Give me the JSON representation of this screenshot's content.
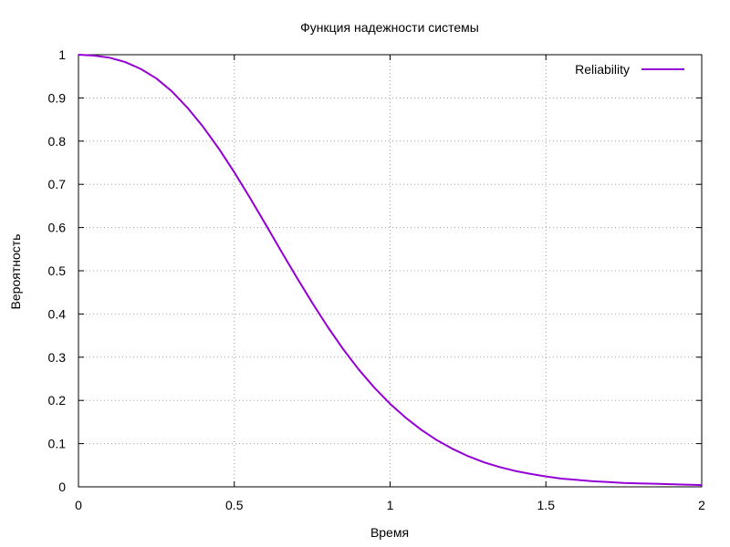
{
  "chart_data": {
    "type": "line",
    "title": "Функция надежности системы",
    "xlabel": "Время",
    "ylabel": "Вероятность",
    "xlim": [
      0,
      2
    ],
    "ylim": [
      0,
      1
    ],
    "xticks": [
      "0",
      "0.5",
      "1",
      "1.5",
      "2"
    ],
    "yticks": [
      "0",
      "0.1",
      "0.2",
      "0.3",
      "0.4",
      "0.5",
      "0.6",
      "0.7",
      "0.8",
      "0.9",
      "1"
    ],
    "grid": true,
    "legend_position": "top-right",
    "series": [
      {
        "name": "Reliability",
        "color": "#9400d3",
        "x": [
          0,
          0.05,
          0.1,
          0.15,
          0.2,
          0.25,
          0.3,
          0.35,
          0.4,
          0.45,
          0.5,
          0.55,
          0.6,
          0.65,
          0.7,
          0.75,
          0.8,
          0.85,
          0.9,
          0.95,
          1.0,
          1.05,
          1.1,
          1.15,
          1.2,
          1.25,
          1.3,
          1.35,
          1.4,
          1.45,
          1.5,
          1.55,
          1.6,
          1.65,
          1.7,
          1.75,
          1.8,
          1.85,
          1.9,
          1.95,
          2.0
        ],
        "y": [
          1.0,
          0.998,
          0.993,
          0.983,
          0.967,
          0.945,
          0.915,
          0.877,
          0.833,
          0.783,
          0.728,
          0.669,
          0.608,
          0.546,
          0.485,
          0.426,
          0.37,
          0.318,
          0.271,
          0.229,
          0.192,
          0.16,
          0.132,
          0.108,
          0.088,
          0.071,
          0.057,
          0.046,
          0.037,
          0.03,
          0.024,
          0.019,
          0.016,
          0.013,
          0.011,
          0.009,
          0.008,
          0.007,
          0.006,
          0.005,
          0.004
        ]
      }
    ]
  }
}
